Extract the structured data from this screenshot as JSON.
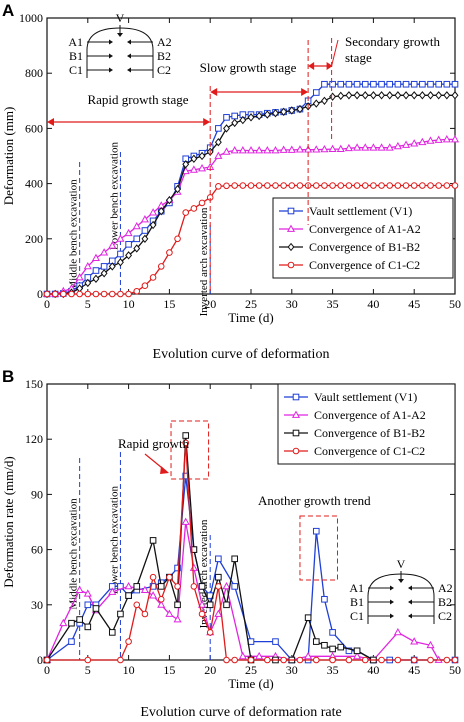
{
  "chart_data": [
    {
      "panel": "A",
      "type": "line",
      "caption": "Evolution curve of deformation",
      "xlabel": "Time (d)",
      "ylabel": "Deformation (mm)",
      "xlim": [
        0,
        50
      ],
      "ylim": [
        0,
        1000
      ],
      "xticks": [
        0,
        5,
        10,
        15,
        20,
        25,
        30,
        35,
        40,
        45,
        50
      ],
      "yticks": [
        0,
        200,
        400,
        600,
        800,
        1000
      ],
      "legend_position": "bottom-right",
      "series": [
        {
          "name": "Vault settlement (V1)",
          "color": "#1f3fd6",
          "marker": "square",
          "x": [
            0,
            1,
            2,
            3,
            4,
            5,
            6,
            7,
            8,
            9,
            10,
            11,
            12,
            13,
            14,
            15,
            16,
            17,
            18,
            19,
            20,
            21,
            22,
            23,
            24,
            25,
            26,
            27,
            28,
            29,
            30,
            31,
            32,
            33,
            34,
            35,
            36,
            37,
            38,
            39,
            40,
            41,
            42,
            43,
            44,
            45,
            46,
            47,
            48,
            49,
            50
          ],
          "y": [
            0,
            0,
            2,
            10,
            30,
            60,
            85,
            100,
            120,
            145,
            180,
            200,
            230,
            265,
            300,
            330,
            390,
            490,
            500,
            510,
            530,
            600,
            640,
            645,
            650,
            650,
            650,
            655,
            658,
            660,
            665,
            670,
            700,
            730,
            760,
            760,
            760,
            760,
            760,
            760,
            760,
            760,
            760,
            760,
            760,
            760,
            760,
            760,
            760,
            760,
            760
          ]
        },
        {
          "name": "Convergence of A1-A2",
          "color": "#e025e0",
          "marker": "triangle",
          "x": [
            0,
            1,
            2,
            3,
            4,
            5,
            6,
            7,
            8,
            9,
            10,
            11,
            12,
            13,
            14,
            15,
            16,
            17,
            18,
            19,
            20,
            21,
            22,
            23,
            24,
            25,
            26,
            27,
            28,
            29,
            30,
            31,
            32,
            33,
            34,
            35,
            36,
            37,
            38,
            39,
            40,
            41,
            42,
            43,
            44,
            45,
            46,
            47,
            48,
            49,
            50
          ],
          "y": [
            0,
            0,
            10,
            20,
            60,
            100,
            130,
            150,
            175,
            200,
            220,
            245,
            270,
            295,
            320,
            340,
            370,
            445,
            450,
            455,
            460,
            500,
            515,
            520,
            520,
            520,
            520,
            520,
            520,
            522,
            522,
            523,
            523,
            523,
            524,
            525,
            525,
            528,
            530,
            530,
            530,
            530,
            530,
            535,
            540,
            545,
            550,
            555,
            558,
            560,
            560
          ]
        },
        {
          "name": "Convergence of B1-B2",
          "color": "#111111",
          "marker": "diamond",
          "x": [
            0,
            1,
            2,
            3,
            4,
            5,
            6,
            7,
            8,
            9,
            10,
            11,
            12,
            13,
            14,
            15,
            16,
            17,
            18,
            19,
            20,
            21,
            22,
            23,
            24,
            25,
            26,
            27,
            28,
            29,
            30,
            31,
            32,
            33,
            34,
            35,
            36,
            37,
            38,
            39,
            40,
            41,
            42,
            43,
            44,
            45,
            46,
            47,
            48,
            49,
            50
          ],
          "y": [
            0,
            0,
            0,
            5,
            20,
            40,
            55,
            75,
            100,
            115,
            140,
            165,
            200,
            250,
            300,
            340,
            380,
            470,
            490,
            500,
            515,
            550,
            600,
            620,
            630,
            640,
            645,
            650,
            655,
            660,
            665,
            670,
            680,
            690,
            700,
            715,
            718,
            720,
            720,
            720,
            720,
            720,
            720,
            720,
            720,
            720,
            720,
            720,
            720,
            720,
            720
          ]
        },
        {
          "name": "Convergence of C1-C2",
          "color": "#e01b1b",
          "marker": "circle",
          "x": [
            0,
            1,
            2,
            3,
            4,
            5,
            6,
            7,
            8,
            9,
            10,
            11,
            12,
            13,
            14,
            15,
            16,
            17,
            18,
            19,
            20,
            21,
            22,
            23,
            24,
            25,
            26,
            27,
            28,
            29,
            30,
            31,
            32,
            33,
            34,
            35,
            36,
            37,
            38,
            39,
            40,
            41,
            42,
            43,
            44,
            45,
            46,
            47,
            48,
            49,
            50
          ],
          "y": [
            0,
            0,
            0,
            0,
            0,
            0,
            0,
            0,
            0,
            0,
            0,
            10,
            30,
            60,
            100,
            150,
            200,
            295,
            310,
            330,
            350,
            390,
            392,
            393,
            393,
            393,
            393,
            393,
            393,
            393,
            393,
            393,
            393,
            393,
            393,
            393,
            393,
            393,
            393,
            393,
            393,
            393,
            393,
            393,
            393,
            393,
            393,
            393,
            393,
            393,
            393
          ]
        }
      ],
      "stage_lines": [
        {
          "x": 4,
          "label": "Middle bench excavation"
        },
        {
          "x": 9,
          "label": "Lower bench excavation"
        },
        {
          "x": 20,
          "label": "Inverted arch excavation"
        }
      ],
      "stage_annotations": [
        {
          "label": "Rapid growth stage",
          "from": 0,
          "to": 20
        },
        {
          "label": "Slow growth stage",
          "from": 20,
          "to": 32
        },
        {
          "label": "Secondary growth stage",
          "from": 32,
          "to": 35
        }
      ],
      "inset_labels": {
        "top": "V",
        "left": [
          "A1",
          "B1",
          "C1"
        ],
        "right": [
          "A2",
          "B2",
          "C2"
        ]
      }
    },
    {
      "panel": "B",
      "type": "line",
      "caption": "Evolution curve of deformation rate",
      "xlabel": "Time (d)",
      "ylabel": "Deformation rate (mm/d)",
      "xlim": [
        0,
        50
      ],
      "ylim": [
        0,
        150
      ],
      "xticks": [
        0,
        5,
        10,
        15,
        20,
        25,
        30,
        35,
        40,
        45,
        50
      ],
      "yticks": [
        0,
        30,
        60,
        90,
        120,
        150
      ],
      "legend_position": "top-right",
      "series": [
        {
          "name": "Vault settlement (V1)",
          "color": "#1f3fd6",
          "marker": "square",
          "x": [
            0,
            3,
            4,
            5,
            6,
            8,
            9,
            10,
            11,
            13,
            14,
            15,
            16,
            17,
            18,
            19,
            20,
            21,
            23,
            25,
            28,
            30,
            32,
            33,
            34,
            35,
            37,
            38,
            40,
            42,
            45,
            50
          ],
          "y": [
            0,
            10,
            20,
            30,
            30,
            40,
            40,
            35,
            38,
            40,
            42,
            45,
            50,
            100,
            60,
            40,
            35,
            55,
            40,
            10,
            10,
            0,
            0,
            70,
            33,
            15,
            5,
            5,
            0,
            0,
            0,
            0
          ]
        },
        {
          "name": "Convergence of A1-A2",
          "color": "#e025e0",
          "marker": "triangle",
          "x": [
            0,
            2,
            4,
            5,
            6,
            8,
            10,
            12,
            13,
            14,
            15,
            16,
            17,
            18,
            19,
            20,
            21,
            22,
            24,
            26,
            28,
            30,
            32,
            35,
            38,
            40,
            43,
            45,
            47,
            48
          ],
          "y": [
            0,
            20,
            38,
            36,
            27,
            37,
            40,
            38,
            35,
            30,
            25,
            22,
            75,
            50,
            30,
            15,
            25,
            40,
            2,
            2,
            2,
            0,
            2,
            2,
            2,
            0,
            15,
            10,
            8,
            0
          ]
        },
        {
          "name": "Convergence of B1-B2",
          "color": "#111111",
          "marker": "square",
          "x": [
            0,
            3,
            4,
            5,
            6,
            8,
            9,
            10,
            11,
            13,
            14,
            15,
            16,
            17,
            18,
            19,
            20,
            21,
            22,
            23,
            25,
            28,
            30,
            32,
            33,
            34,
            35,
            36,
            38,
            40
          ],
          "y": [
            0,
            20,
            22,
            18,
            28,
            15,
            25,
            35,
            40,
            65,
            40,
            45,
            30,
            122,
            60,
            40,
            30,
            45,
            30,
            55,
            0,
            0,
            0,
            23,
            10,
            8,
            6,
            7,
            5,
            0
          ]
        },
        {
          "name": "Convergence of C1-C2",
          "color": "#e01b1b",
          "marker": "circle",
          "x": [
            0,
            5,
            9,
            10,
            11,
            12,
            13,
            14,
            15,
            16,
            17,
            18,
            19,
            20,
            21,
            22,
            23,
            25,
            27,
            29,
            31,
            33,
            35,
            37,
            39,
            41,
            43,
            45,
            47,
            49,
            50
          ],
          "y": [
            0,
            0,
            0,
            10,
            30,
            25,
            45,
            33,
            45,
            40,
            118,
            40,
            25,
            15,
            40,
            0,
            0,
            0,
            0,
            0,
            0,
            0,
            0,
            0,
            0,
            0,
            0,
            0,
            0,
            0,
            0
          ]
        }
      ],
      "stage_lines": [
        {
          "x": 4,
          "label": "Middle bench excavation"
        },
        {
          "x": 9,
          "label": "Lower bench excavation"
        },
        {
          "x": 20,
          "label": "Inverted arch excavation"
        }
      ],
      "callouts": [
        {
          "label": "Rapid growth"
        },
        {
          "label": "Another growth trend"
        }
      ],
      "inset_labels": {
        "top": "V",
        "left": [
          "A1",
          "B1",
          "C1"
        ],
        "right": [
          "A2",
          "B2",
          "C2"
        ]
      }
    }
  ]
}
